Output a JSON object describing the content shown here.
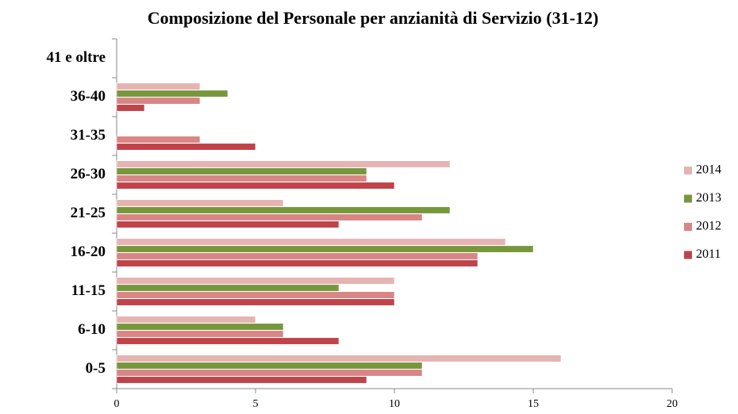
{
  "chart_data": {
    "type": "hbar",
    "title": "Composizione del Personale per anzianità di Servizio (31-12)",
    "categories": [
      "0-5",
      "6-10",
      "11-15",
      "16-20",
      "21-25",
      "26-30",
      "31-35",
      "36-40",
      "41 e oltre"
    ],
    "series": [
      {
        "name": "2014",
        "color": "#e6b3b3",
        "values": [
          16,
          5,
          10,
          14,
          6,
          12,
          0,
          3,
          0
        ]
      },
      {
        "name": "2013",
        "color": "#77973d",
        "values": [
          11,
          6,
          8,
          15,
          12,
          9,
          0,
          4,
          0
        ]
      },
      {
        "name": "2012",
        "color": "#d98585",
        "values": [
          11,
          6,
          10,
          13,
          11,
          9,
          3,
          3,
          0
        ]
      },
      {
        "name": "2011",
        "color": "#c0434a",
        "values": [
          9,
          8,
          10,
          13,
          8,
          10,
          5,
          1,
          0
        ]
      }
    ],
    "xlim": [
      0,
      20
    ],
    "xticks": [
      0,
      5,
      10,
      15,
      20
    ],
    "grid": false,
    "legend": "right"
  }
}
